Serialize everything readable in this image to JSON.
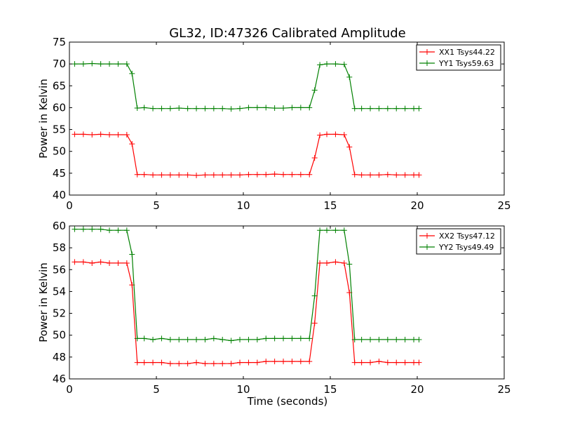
{
  "figure": {
    "title": "GL32, ID:47326 Calibrated Amplitude",
    "xlabel": "Time (seconds)"
  },
  "chart_data": [
    {
      "type": "line",
      "title": "GL32, ID:47326 Calibrated Amplitude",
      "xlabel": "",
      "ylabel": "Power in Kelvin",
      "xlim": [
        0,
        25
      ],
      "ylim": [
        40,
        75
      ],
      "xticks": [
        0,
        5,
        10,
        15,
        20,
        25
      ],
      "yticks": [
        40,
        45,
        50,
        55,
        60,
        65,
        70,
        75
      ],
      "legend": "top-right",
      "grid": false,
      "series": [
        {
          "name": "XX1 Tsys44.22",
          "color": "#ff0000",
          "x": [
            0.3,
            0.8,
            1.3,
            1.8,
            2.3,
            2.8,
            3.3,
            3.6,
            3.9,
            4.3,
            4.8,
            5.3,
            5.8,
            6.3,
            6.8,
            7.3,
            7.8,
            8.3,
            8.8,
            9.3,
            9.8,
            10.3,
            10.8,
            11.3,
            11.8,
            12.3,
            12.8,
            13.3,
            13.8,
            14.1,
            14.4,
            14.8,
            15.3,
            15.8,
            16.1,
            16.4,
            16.8,
            17.3,
            17.8,
            18.3,
            18.8,
            19.3,
            19.8,
            20.1
          ],
          "y": [
            53.9,
            53.9,
            53.8,
            53.9,
            53.8,
            53.8,
            53.8,
            51.7,
            44.7,
            44.7,
            44.6,
            44.6,
            44.6,
            44.6,
            44.6,
            44.5,
            44.6,
            44.6,
            44.6,
            44.6,
            44.6,
            44.7,
            44.7,
            44.7,
            44.8,
            44.7,
            44.7,
            44.7,
            44.7,
            48.5,
            53.7,
            53.9,
            53.9,
            53.8,
            51.0,
            44.7,
            44.6,
            44.6,
            44.6,
            44.7,
            44.6,
            44.6,
            44.6,
            44.6
          ]
        },
        {
          "name": "YY1 Tsys59.63",
          "color": "#008000",
          "x": [
            0.3,
            0.8,
            1.3,
            1.8,
            2.3,
            2.8,
            3.3,
            3.6,
            3.9,
            4.3,
            4.8,
            5.3,
            5.8,
            6.3,
            6.8,
            7.3,
            7.8,
            8.3,
            8.8,
            9.3,
            9.8,
            10.3,
            10.8,
            11.3,
            11.8,
            12.3,
            12.8,
            13.3,
            13.8,
            14.1,
            14.4,
            14.8,
            15.3,
            15.8,
            16.1,
            16.4,
            16.8,
            17.3,
            17.8,
            18.3,
            18.8,
            19.3,
            19.8,
            20.1
          ],
          "y": [
            70.0,
            70.0,
            70.1,
            70.0,
            70.0,
            70.0,
            70.0,
            67.8,
            59.9,
            60.0,
            59.8,
            59.8,
            59.8,
            59.9,
            59.8,
            59.8,
            59.8,
            59.8,
            59.8,
            59.7,
            59.8,
            60.0,
            60.0,
            60.0,
            59.9,
            59.9,
            60.0,
            60.0,
            60.0,
            64.0,
            69.8,
            70.0,
            70.0,
            69.9,
            67.0,
            59.8,
            59.8,
            59.8,
            59.8,
            59.8,
            59.8,
            59.8,
            59.8,
            59.8
          ]
        }
      ]
    },
    {
      "type": "line",
      "title": "",
      "xlabel": "Time (seconds)",
      "ylabel": "Power in Kelvin",
      "xlim": [
        0,
        25
      ],
      "ylim": [
        46,
        60
      ],
      "xticks": [
        0,
        5,
        10,
        15,
        20,
        25
      ],
      "yticks": [
        46,
        48,
        50,
        52,
        54,
        56,
        58,
        60
      ],
      "legend": "top-right",
      "grid": false,
      "series": [
        {
          "name": "XX2 Tsys47.12",
          "color": "#ff0000",
          "x": [
            0.3,
            0.8,
            1.3,
            1.8,
            2.3,
            2.8,
            3.3,
            3.6,
            3.9,
            4.3,
            4.8,
            5.3,
            5.8,
            6.3,
            6.8,
            7.3,
            7.8,
            8.3,
            8.8,
            9.3,
            9.8,
            10.3,
            10.8,
            11.3,
            11.8,
            12.3,
            12.8,
            13.3,
            13.8,
            14.1,
            14.4,
            14.8,
            15.3,
            15.8,
            16.1,
            16.4,
            16.8,
            17.3,
            17.8,
            18.3,
            18.8,
            19.3,
            19.8,
            20.1
          ],
          "y": [
            56.7,
            56.7,
            56.6,
            56.7,
            56.6,
            56.6,
            56.6,
            54.6,
            47.5,
            47.5,
            47.5,
            47.5,
            47.4,
            47.4,
            47.4,
            47.5,
            47.4,
            47.4,
            47.4,
            47.4,
            47.5,
            47.5,
            47.5,
            47.6,
            47.6,
            47.6,
            47.6,
            47.6,
            47.6,
            51.1,
            56.6,
            56.6,
            56.7,
            56.6,
            53.9,
            47.5,
            47.5,
            47.5,
            47.6,
            47.5,
            47.5,
            47.5,
            47.5,
            47.5
          ]
        },
        {
          "name": "YY2 Tsys49.49",
          "color": "#008000",
          "x": [
            0.3,
            0.8,
            1.3,
            1.8,
            2.3,
            2.8,
            3.3,
            3.6,
            3.9,
            4.3,
            4.8,
            5.3,
            5.8,
            6.3,
            6.8,
            7.3,
            7.8,
            8.3,
            8.8,
            9.3,
            9.8,
            10.3,
            10.8,
            11.3,
            11.8,
            12.3,
            12.8,
            13.3,
            13.8,
            14.1,
            14.4,
            14.8,
            15.3,
            15.8,
            16.1,
            16.4,
            16.8,
            17.3,
            17.8,
            18.3,
            18.8,
            19.3,
            19.8,
            20.1
          ],
          "y": [
            59.7,
            59.7,
            59.7,
            59.7,
            59.6,
            59.6,
            59.6,
            57.4,
            49.7,
            49.7,
            49.6,
            49.7,
            49.6,
            49.6,
            49.6,
            49.6,
            49.6,
            49.7,
            49.6,
            49.5,
            49.6,
            49.6,
            49.6,
            49.7,
            49.7,
            49.7,
            49.7,
            49.7,
            49.7,
            53.6,
            59.6,
            59.6,
            59.6,
            59.6,
            56.5,
            49.6,
            49.6,
            49.6,
            49.6,
            49.6,
            49.6,
            49.6,
            49.6,
            49.6
          ]
        }
      ]
    }
  ]
}
